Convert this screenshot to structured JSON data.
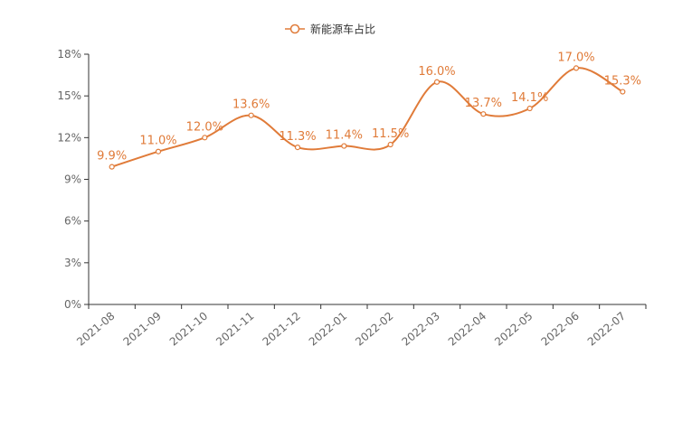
{
  "chart_data": {
    "type": "line",
    "categories": [
      "2021-08",
      "2021-09",
      "2021-10",
      "2021-11",
      "2021-12",
      "2022-01",
      "2022-02",
      "2022-03",
      "2022-04",
      "2022-05",
      "2022-06",
      "2022-07"
    ],
    "series": [
      {
        "name": "新能源车占比",
        "values": [
          9.9,
          11.0,
          12.0,
          13.6,
          11.3,
          11.4,
          11.5,
          16.0,
          13.7,
          14.1,
          17.0,
          15.3
        ],
        "labels": [
          "9.9%",
          "11.0%",
          "12.0%",
          "13.6%",
          "11.3%",
          "11.4%",
          "11.5%",
          "16.0%",
          "13.7%",
          "14.1%",
          "17.0%",
          "15.3%"
        ],
        "color": "#e07b39"
      }
    ],
    "y_ticks": [
      "0%",
      "3%",
      "6%",
      "9%",
      "12%",
      "15%",
      "18%"
    ],
    "ylim": [
      0,
      18
    ],
    "grid": false,
    "legend_position": "top-center",
    "smooth": true
  }
}
